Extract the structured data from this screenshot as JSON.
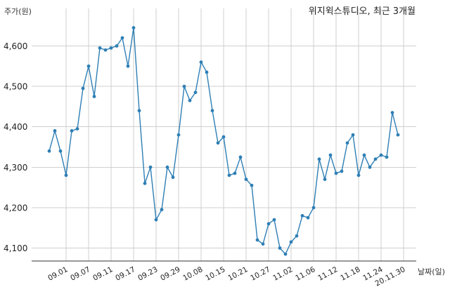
{
  "chart_data": {
    "type": "line",
    "title": "위지윅스튜디오, 최근 3개월",
    "ylabel": "주가(원)",
    "xlabel": "날짜(일)",
    "ylim": [
      4070,
      4660
    ],
    "yticks": [
      4100,
      4200,
      4300,
      4400,
      4500,
      4600
    ],
    "ytick_labels": [
      "4,100",
      "4,200",
      "4,300",
      "4,400",
      "4,500",
      "4,600"
    ],
    "tick_labels": [
      "09.01",
      "09.07",
      "09.11",
      "09.17",
      "09.23",
      "09.29",
      "10.08",
      "10.15",
      "10.21",
      "10.27",
      "11.02",
      "11.06",
      "11.12",
      "11.18",
      "11.24",
      "20.11.30"
    ],
    "tick_indices": [
      3,
      7,
      11,
      15,
      19,
      23,
      27,
      31,
      35,
      39,
      43,
      47,
      51,
      55,
      59,
      63
    ],
    "grid": true,
    "color": "#2e7fb5",
    "values": [
      4340,
      4390,
      4340,
      4280,
      4390,
      4395,
      4495,
      4550,
      4475,
      4595,
      4590,
      4595,
      4600,
      4620,
      4550,
      4645,
      4440,
      4260,
      4300,
      4170,
      4195,
      4300,
      4275,
      4380,
      4500,
      4465,
      4485,
      4560,
      4535,
      4440,
      4360,
      4375,
      4280,
      4285,
      4325,
      4270,
      4255,
      4120,
      4110,
      4160,
      4170,
      4100,
      4085,
      4115,
      4130,
      4180,
      4175,
      4200,
      4320,
      4270,
      4330,
      4285,
      4290,
      4360,
      4380,
      4280,
      4330,
      4300,
      4320,
      4330,
      4325,
      4435,
      4380
    ]
  }
}
